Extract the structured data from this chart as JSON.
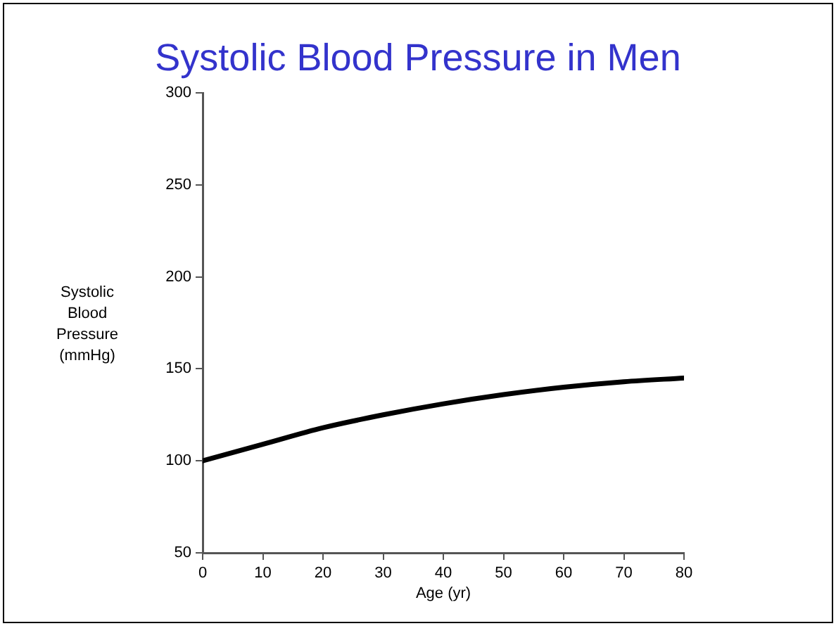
{
  "chart_data": {
    "type": "line",
    "title": "Systolic Blood Pressure in Men",
    "xlabel": "Age (yr)",
    "ylabel": "Systolic Blood Pressure (mmHg)",
    "x": [
      0,
      10,
      20,
      30,
      40,
      50,
      60,
      70,
      80
    ],
    "series": [
      {
        "color": "#000000",
        "values": [
          100,
          109,
          118,
          125,
          131,
          136,
          140,
          143,
          145
        ]
      }
    ],
    "xlim": [
      0,
      80
    ],
    "xticks": [
      0,
      10,
      20,
      30,
      40,
      50,
      60,
      70,
      80
    ],
    "ylim": [
      50,
      300
    ],
    "yticks": [
      50,
      100,
      150,
      200,
      250,
      300
    ],
    "grid": false,
    "legend": false,
    "marker": "none",
    "line_style": "solid"
  }
}
